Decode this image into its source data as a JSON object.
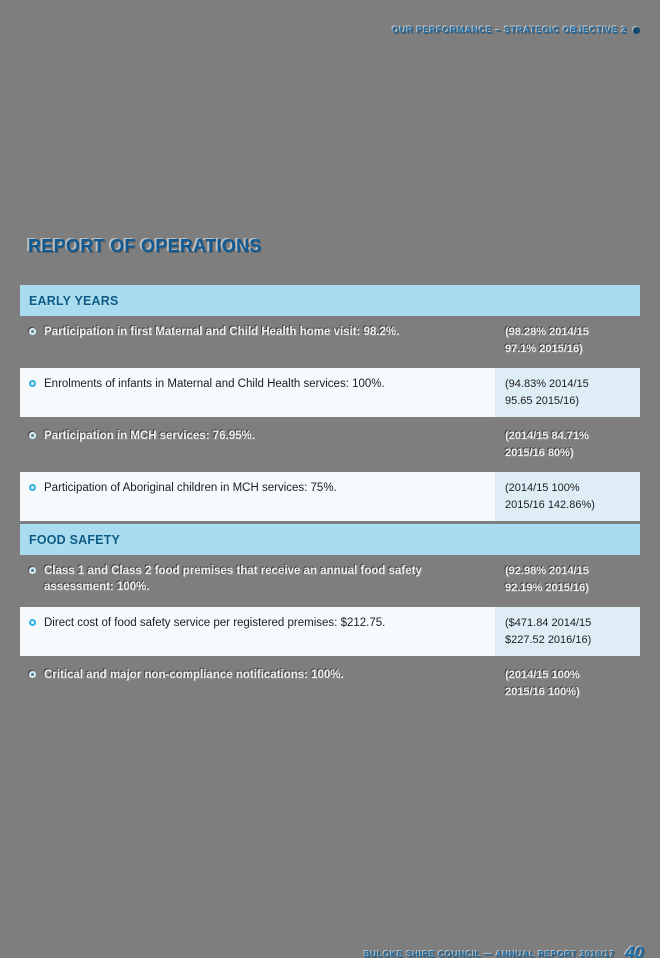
{
  "header": {
    "text": "OUR PERFORMANCE – STRATEGIC OBJECTIVE 2"
  },
  "title": "REPORT OF OPERATIONS",
  "colors": {
    "page_gray": "#7e7e7e",
    "section_bar_blue": "#a9dcee",
    "heading_blue": "#0c5a86",
    "accent_blue": "#1d6da6",
    "bullet_cyan": "#2fb0e2",
    "row_left_bg": "#f6fafc",
    "row_right_bg": "#dfeef6"
  },
  "sections": [
    {
      "heading": "EARLY YEARS",
      "rows": [
        {
          "style": "ghost",
          "text": "Participation in first Maternal and Child Health home visit: 98.2%.",
          "value_line1": "(98.28% 2014/15",
          "value_line2": "97.1% 2015/16)"
        },
        {
          "style": "light",
          "text": "Enrolments of infants in Maternal and Child Health services: 100%.",
          "value_line1": "(94.83% 2014/15",
          "value_line2": "95.65 2015/16)"
        },
        {
          "style": "ghost",
          "text": "Participation in MCH services: 76.95%.",
          "value_line1": "(2014/15 84.71%",
          "value_line2": "2015/16 80%)"
        },
        {
          "style": "light",
          "text": "Participation of Aboriginal children in MCH services: 75%.",
          "value_line1": "(2014/15 100%",
          "value_line2": "2015/16 142.86%)"
        }
      ]
    },
    {
      "heading": "FOOD SAFETY",
      "rows": [
        {
          "style": "ghost",
          "text": "Class 1 and Class 2 food premises that receive an annual food safety assessment: 100%.",
          "value_line1": "(92.98% 2014/15",
          "value_line2": "92.19% 2015/16)"
        },
        {
          "style": "light",
          "text": "Direct cost of food safety service per registered premises: $212.75.",
          "value_line1": "($471.84 2014/15",
          "value_line2": "$227.52 2016/16)"
        },
        {
          "style": "ghost",
          "text": "Critical and major non-compliance notifications: 100%.",
          "value_line1": "(2014/15 100%",
          "value_line2": "2015/16 100%)"
        }
      ]
    }
  ],
  "footer": {
    "text": "BULOKE SHIRE COUNCIL — ANNUAL REPORT 2016/17",
    "page_number": "40"
  }
}
